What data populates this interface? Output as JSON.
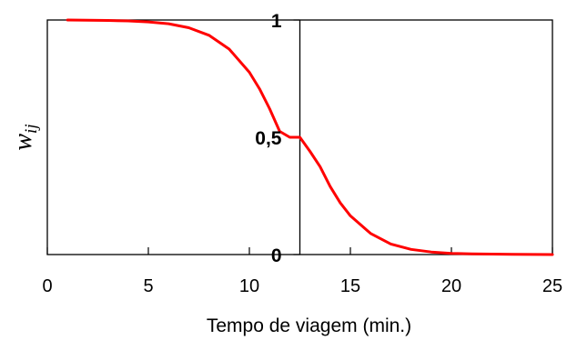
{
  "chart_data": {
    "type": "line",
    "title": "",
    "xlabel": "Tempo de viagem (min.)",
    "ylabel": "w",
    "ylabel_subscript": "ij",
    "xlim": [
      0,
      25
    ],
    "ylim": [
      0,
      1
    ],
    "x_ticks": [
      0,
      5,
      10,
      15,
      20,
      25
    ],
    "x_tick_labels": [
      "0",
      "5",
      "10",
      "15",
      "20",
      "25"
    ],
    "y_ticks": [
      0,
      0.5,
      1
    ],
    "y_tick_labels": [
      "0",
      "0,5",
      "1"
    ],
    "y_axis_at_x": 12.5,
    "grid": false,
    "legend": "none",
    "series": [
      {
        "color": "#ff0000",
        "x": [
          1,
          2,
          3,
          4,
          5,
          6,
          7,
          8,
          9,
          10,
          10.5,
          11,
          11.5,
          12,
          12.5,
          13,
          13.5,
          14,
          14.5,
          15,
          16,
          17,
          18,
          19,
          20,
          21,
          22,
          23,
          24,
          25
        ],
        "y": [
          1.0,
          0.999,
          0.998,
          0.996,
          0.992,
          0.984,
          0.967,
          0.935,
          0.876,
          0.777,
          0.707,
          0.622,
          0.525,
          0.5,
          0.5,
          0.44,
          0.375,
          0.29,
          0.22,
          0.165,
          0.09,
          0.045,
          0.022,
          0.011,
          0.005,
          0.003,
          0.002,
          0.001,
          0.0005,
          0.0
        ]
      }
    ]
  }
}
